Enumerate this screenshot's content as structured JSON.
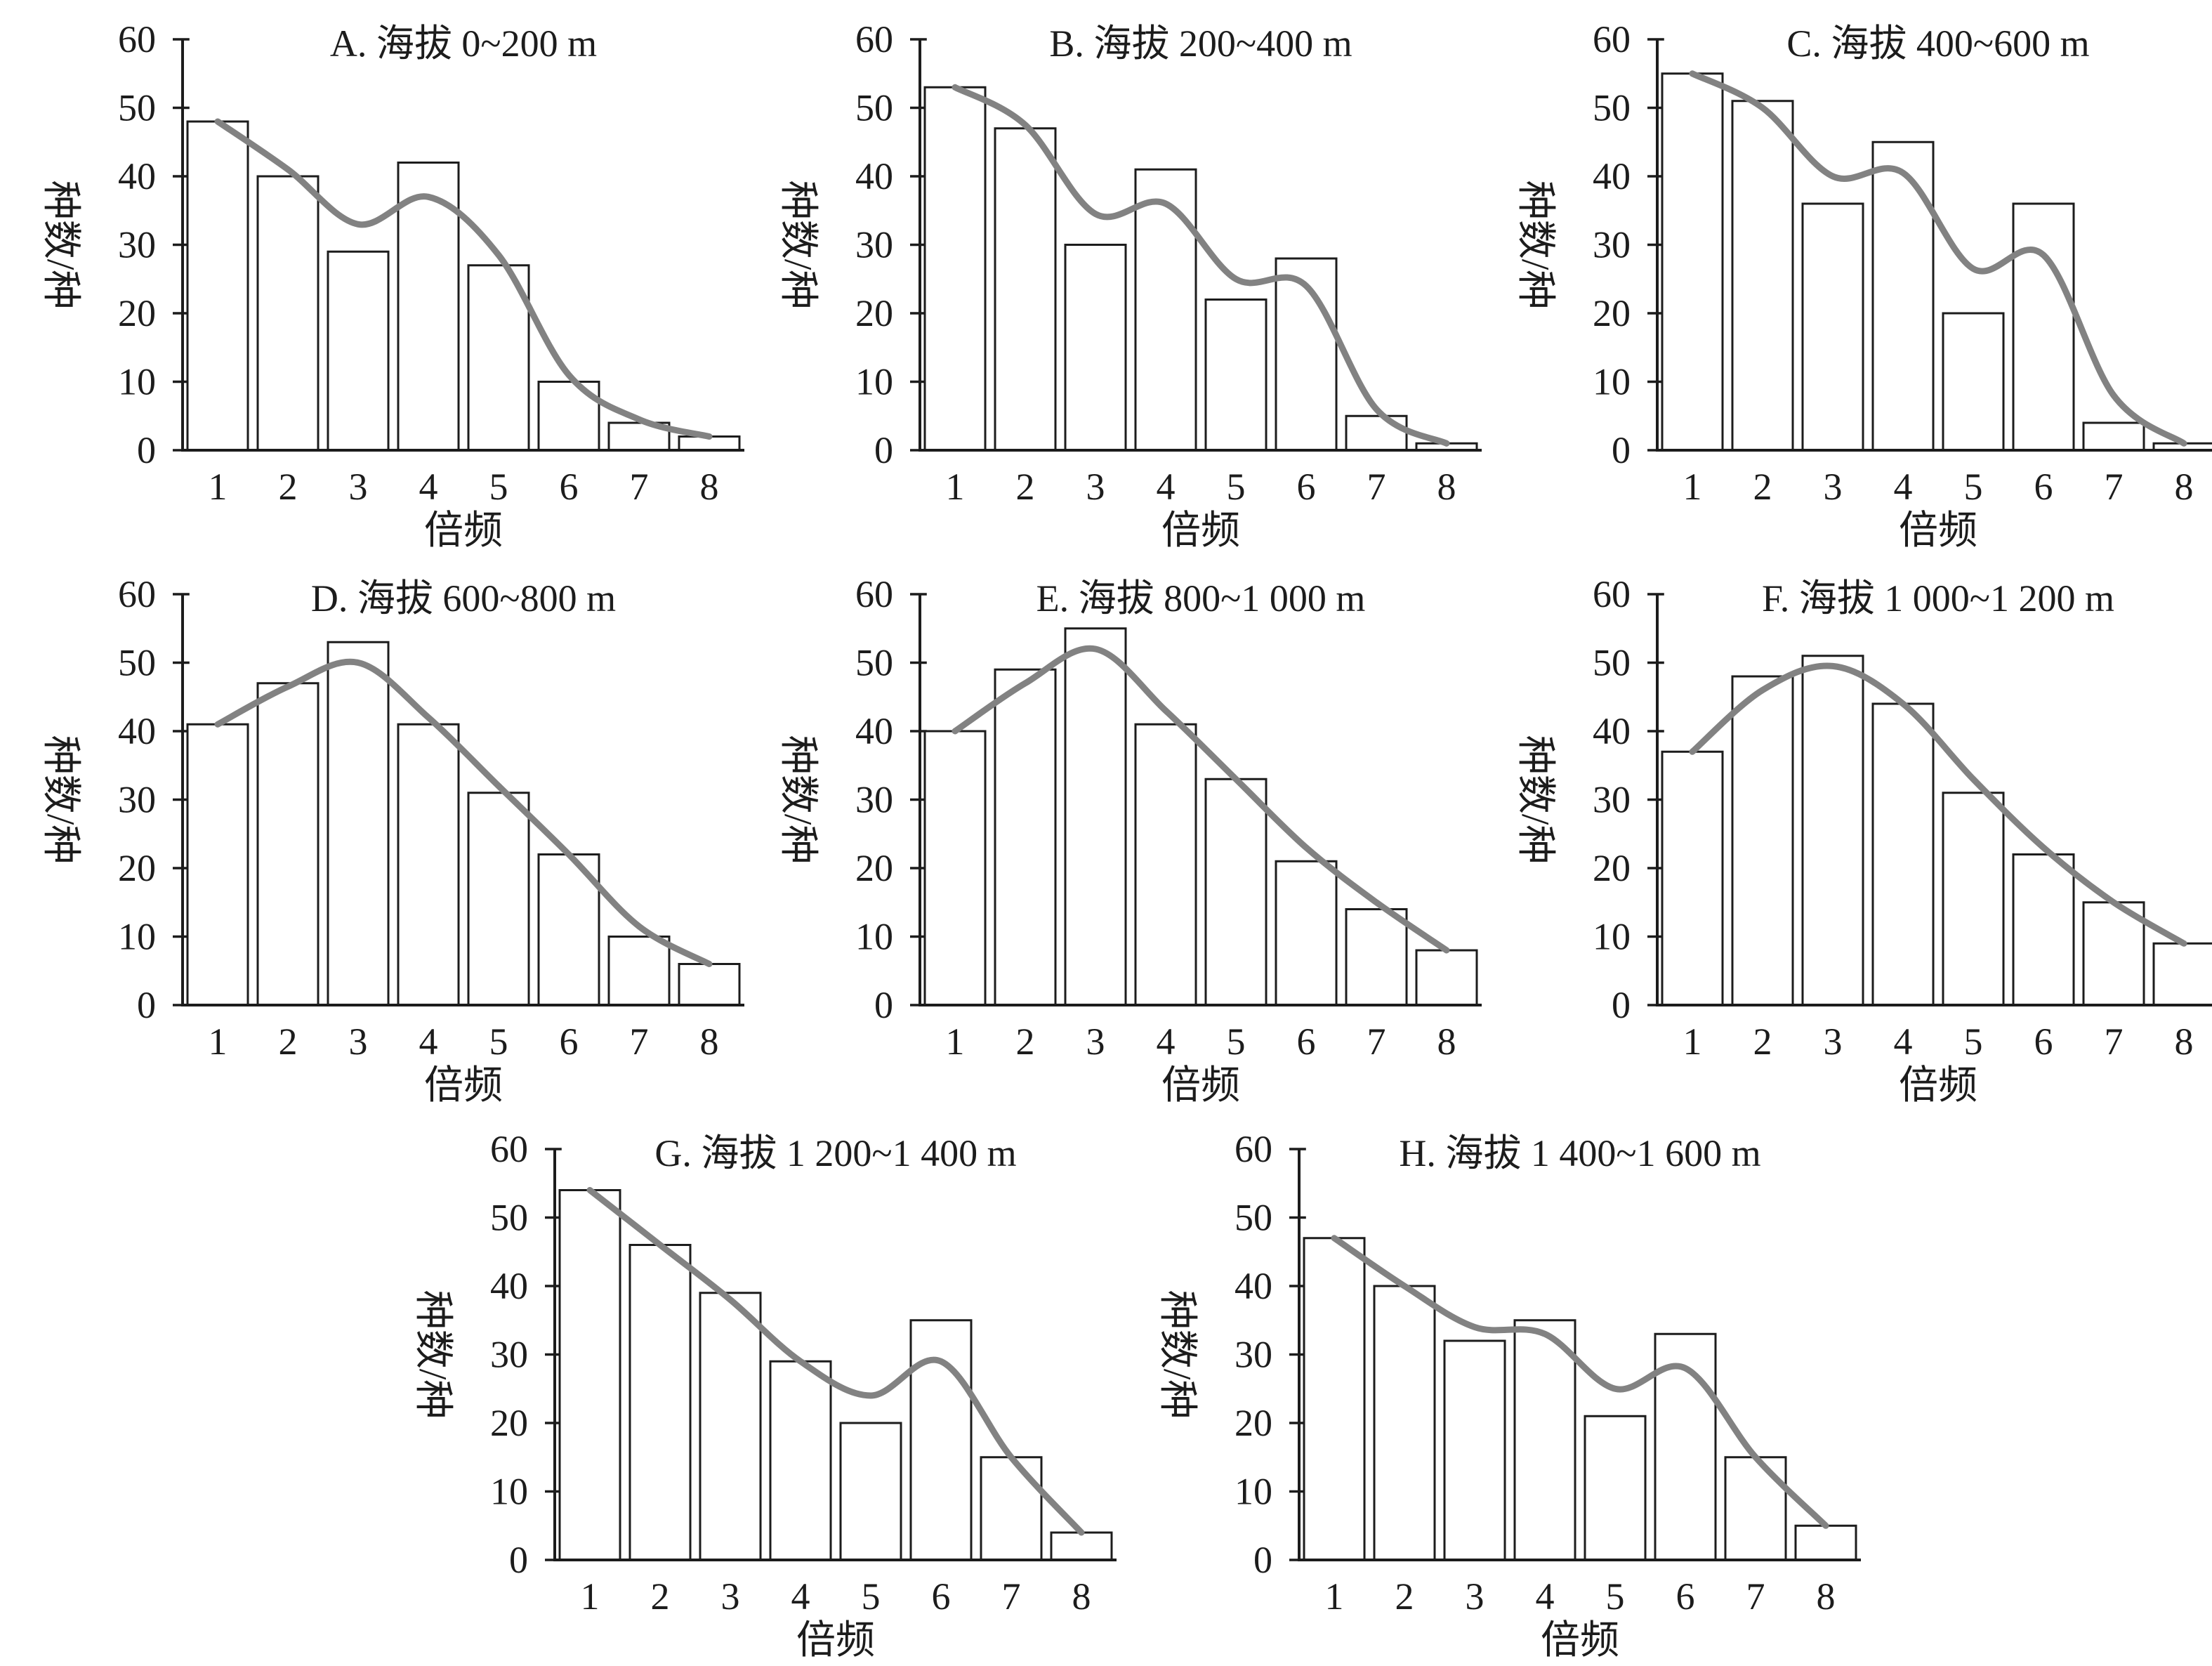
{
  "figure": {
    "xlabel": "倍频",
    "ylabel": "种数/种",
    "x_ticks": [
      "1",
      "2",
      "3",
      "4",
      "5",
      "6",
      "7",
      "8"
    ],
    "y_ticks": [
      0,
      10,
      20,
      30,
      40,
      50,
      60
    ],
    "ylim": [
      0,
      60
    ],
    "grid": "off",
    "legend": "none",
    "colors": {
      "bar_fill": "#ffffff",
      "bar_stroke": "#1c1c1c",
      "trend_curve": "#828282",
      "axis": "#1c1c1c",
      "text": "#1c1c1c"
    }
  },
  "chart_data": [
    {
      "type": "bar",
      "panel": "A",
      "title": "A. 海拔 0~200 m",
      "xlabel": "倍频",
      "ylabel": "种数/种",
      "ylim": [
        0,
        60
      ],
      "categories": [
        1,
        2,
        3,
        4,
        5,
        6,
        7,
        8
      ],
      "values": [
        48,
        40,
        29,
        42,
        27,
        10,
        4,
        2
      ],
      "trend_curve": [
        [
          1,
          48
        ],
        [
          2,
          41
        ],
        [
          3,
          33
        ],
        [
          4,
          37
        ],
        [
          5,
          28.5
        ],
        [
          6,
          11
        ],
        [
          7,
          4.5
        ],
        [
          8,
          2
        ]
      ]
    },
    {
      "type": "bar",
      "panel": "B",
      "title": "B. 海拔 200~400 m",
      "xlabel": "倍频",
      "ylabel": "种数/种",
      "ylim": [
        0,
        60
      ],
      "categories": [
        1,
        2,
        3,
        4,
        5,
        6,
        7,
        8
      ],
      "values": [
        53,
        47,
        30,
        41,
        22,
        28,
        5,
        1
      ],
      "trend_curve": [
        [
          1,
          53
        ],
        [
          2,
          47.5
        ],
        [
          3,
          34.5
        ],
        [
          4,
          36
        ],
        [
          5,
          25
        ],
        [
          6,
          24
        ],
        [
          7,
          6
        ],
        [
          8,
          1
        ]
      ]
    },
    {
      "type": "bar",
      "panel": "C",
      "title": "C. 海拔 400~600 m",
      "xlabel": "倍频",
      "ylabel": "种数/种",
      "ylim": [
        0,
        60
      ],
      "categories": [
        1,
        2,
        3,
        4,
        5,
        6,
        7,
        8
      ],
      "values": [
        55,
        51,
        36,
        45,
        20,
        36,
        4,
        1
      ],
      "trend_curve": [
        [
          1,
          55
        ],
        [
          2,
          50
        ],
        [
          3,
          40
        ],
        [
          4,
          40.5
        ],
        [
          5,
          26.5
        ],
        [
          6,
          28.5
        ],
        [
          7,
          8
        ],
        [
          8,
          1
        ]
      ]
    },
    {
      "type": "bar",
      "panel": "D",
      "title": "D. 海拔 600~800 m",
      "xlabel": "倍频",
      "ylabel": "种数/种",
      "ylim": [
        0,
        60
      ],
      "categories": [
        1,
        2,
        3,
        4,
        5,
        6,
        7,
        8
      ],
      "values": [
        41,
        47,
        53,
        41,
        31,
        22,
        10,
        6
      ],
      "trend_curve": [
        [
          1,
          41
        ],
        [
          2,
          46.5
        ],
        [
          3,
          50
        ],
        [
          4,
          42
        ],
        [
          5,
          32
        ],
        [
          6,
          22
        ],
        [
          7,
          11.5
        ],
        [
          8,
          6
        ]
      ]
    },
    {
      "type": "bar",
      "panel": "E",
      "title": "E. 海拔 800~1 000 m",
      "xlabel": "倍频",
      "ylabel": "种数/种",
      "ylim": [
        0,
        60
      ],
      "categories": [
        1,
        2,
        3,
        4,
        5,
        6,
        7,
        8
      ],
      "values": [
        40,
        49,
        55,
        41,
        33,
        21,
        14,
        8
      ],
      "trend_curve": [
        [
          1,
          40
        ],
        [
          2,
          47
        ],
        [
          3,
          52
        ],
        [
          4,
          43
        ],
        [
          5,
          33
        ],
        [
          6,
          23
        ],
        [
          7,
          15
        ],
        [
          8,
          8
        ]
      ]
    },
    {
      "type": "bar",
      "panel": "F",
      "title": "F. 海拔 1 000~1 200 m",
      "xlabel": "倍频",
      "ylabel": "种数/种",
      "ylim": [
        0,
        60
      ],
      "categories": [
        1,
        2,
        3,
        4,
        5,
        6,
        7,
        8
      ],
      "values": [
        37,
        48,
        51,
        44,
        31,
        22,
        15,
        9
      ],
      "trend_curve": [
        [
          1,
          37
        ],
        [
          2,
          46
        ],
        [
          3,
          49.5
        ],
        [
          4,
          44
        ],
        [
          5,
          33
        ],
        [
          6,
          23
        ],
        [
          7,
          15
        ],
        [
          8,
          9
        ]
      ]
    },
    {
      "type": "bar",
      "panel": "G",
      "title": "G. 海拔 1 200~1 400 m",
      "xlabel": "倍频",
      "ylabel": "种数/种",
      "ylim": [
        0,
        60
      ],
      "categories": [
        1,
        2,
        3,
        4,
        5,
        6,
        7,
        8
      ],
      "values": [
        54,
        46,
        39,
        29,
        20,
        35,
        15,
        4
      ],
      "trend_curve": [
        [
          1,
          54
        ],
        [
          2,
          46
        ],
        [
          3,
          38
        ],
        [
          4,
          29
        ],
        [
          5,
          24
        ],
        [
          6,
          29
        ],
        [
          7,
          15
        ],
        [
          8,
          4
        ]
      ]
    },
    {
      "type": "bar",
      "panel": "H",
      "title": "H. 海拔 1 400~1 600 m",
      "xlabel": "倍频",
      "ylabel": "种数/种",
      "ylim": [
        0,
        60
      ],
      "categories": [
        1,
        2,
        3,
        4,
        5,
        6,
        7,
        8
      ],
      "values": [
        47,
        40,
        32,
        35,
        21,
        33,
        15,
        5
      ],
      "trend_curve": [
        [
          1,
          47
        ],
        [
          2,
          40
        ],
        [
          3,
          34
        ],
        [
          4,
          33
        ],
        [
          5,
          25
        ],
        [
          6,
          28
        ],
        [
          7,
          15
        ],
        [
          8,
          5
        ]
      ]
    }
  ]
}
